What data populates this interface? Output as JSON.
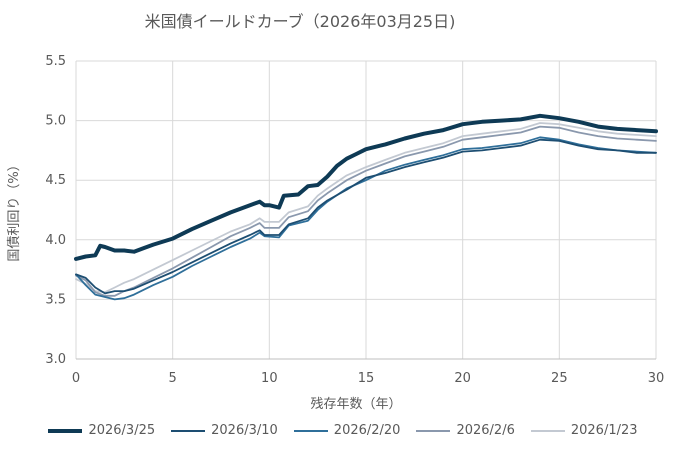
{
  "chart_data": {
    "type": "line",
    "title": "米国債イールドカーブ（2026年03月25日)",
    "xlabel": "残存年数（年）",
    "ylabel": "国債利回り（%）",
    "xlim": [
      0,
      30
    ],
    "ylim": [
      3.0,
      5.5
    ],
    "xticks": [
      0,
      5,
      10,
      15,
      20,
      25,
      30
    ],
    "yticks": [
      "3.0",
      "3.5",
      "4.0",
      "4.5",
      "5.0",
      "5.5"
    ],
    "grid": true,
    "legend_position": "bottom",
    "series": [
      {
        "name": "2026/3/25",
        "color": "#0e3a55",
        "width": 4,
        "points": [
          [
            0,
            3.84
          ],
          [
            0.5,
            3.86
          ],
          [
            1,
            3.87
          ],
          [
            1.25,
            3.95
          ],
          [
            1.5,
            3.94
          ],
          [
            2,
            3.91
          ],
          [
            2.5,
            3.91
          ],
          [
            3,
            3.9
          ],
          [
            3.5,
            3.93
          ],
          [
            4,
            3.96
          ],
          [
            5,
            4.01
          ],
          [
            6,
            4.09
          ],
          [
            7,
            4.16
          ],
          [
            8,
            4.23
          ],
          [
            9,
            4.29
          ],
          [
            9.5,
            4.32
          ],
          [
            9.75,
            4.29
          ],
          [
            10,
            4.29
          ],
          [
            10.5,
            4.27
          ],
          [
            10.75,
            4.37
          ],
          [
            11.5,
            4.38
          ],
          [
            12,
            4.45
          ],
          [
            12.5,
            4.46
          ],
          [
            13,
            4.53
          ],
          [
            13.5,
            4.62
          ],
          [
            14,
            4.68
          ],
          [
            14.5,
            4.72
          ],
          [
            15,
            4.76
          ],
          [
            16,
            4.8
          ],
          [
            17,
            4.85
          ],
          [
            18,
            4.89
          ],
          [
            19,
            4.92
          ],
          [
            20,
            4.97
          ],
          [
            21,
            4.99
          ],
          [
            22,
            5.0
          ],
          [
            23,
            5.01
          ],
          [
            24,
            5.04
          ],
          [
            25,
            5.02
          ],
          [
            26,
            4.99
          ],
          [
            27,
            4.95
          ],
          [
            28,
            4.93
          ],
          [
            29,
            4.92
          ],
          [
            30,
            4.91
          ]
        ]
      },
      {
        "name": "2026/3/10",
        "color": "#1d4e72",
        "width": 1.8,
        "points": [
          [
            0,
            3.71
          ],
          [
            0.5,
            3.68
          ],
          [
            1,
            3.6
          ],
          [
            1.5,
            3.55
          ],
          [
            2,
            3.57
          ],
          [
            2.5,
            3.57
          ],
          [
            3,
            3.59
          ],
          [
            4,
            3.66
          ],
          [
            5,
            3.73
          ],
          [
            6,
            3.81
          ],
          [
            7,
            3.89
          ],
          [
            8,
            3.97
          ],
          [
            9,
            4.04
          ],
          [
            9.5,
            4.08
          ],
          [
            9.75,
            4.04
          ],
          [
            10.5,
            4.04
          ],
          [
            11,
            4.13
          ],
          [
            12,
            4.18
          ],
          [
            12.5,
            4.27
          ],
          [
            13,
            4.33
          ],
          [
            14,
            4.42
          ],
          [
            15,
            4.52
          ],
          [
            16,
            4.56
          ],
          [
            17,
            4.61
          ],
          [
            18,
            4.65
          ],
          [
            19,
            4.69
          ],
          [
            20,
            4.74
          ],
          [
            21,
            4.75
          ],
          [
            22,
            4.77
          ],
          [
            23,
            4.79
          ],
          [
            24,
            4.84
          ],
          [
            25,
            4.83
          ],
          [
            26,
            4.79
          ],
          [
            27,
            4.76
          ],
          [
            28,
            4.75
          ],
          [
            29,
            4.73
          ],
          [
            30,
            4.73
          ]
        ]
      },
      {
        "name": "2026/2/20",
        "color": "#2f6f9a",
        "width": 1.8,
        "points": [
          [
            0,
            3.71
          ],
          [
            0.5,
            3.62
          ],
          [
            1,
            3.54
          ],
          [
            1.5,
            3.52
          ],
          [
            2,
            3.5
          ],
          [
            2.5,
            3.51
          ],
          [
            3,
            3.54
          ],
          [
            4,
            3.62
          ],
          [
            5,
            3.69
          ],
          [
            6,
            3.78
          ],
          [
            7,
            3.86
          ],
          [
            8,
            3.94
          ],
          [
            9,
            4.01
          ],
          [
            9.5,
            4.06
          ],
          [
            9.75,
            4.03
          ],
          [
            10.5,
            4.02
          ],
          [
            11,
            4.12
          ],
          [
            12,
            4.16
          ],
          [
            12.5,
            4.25
          ],
          [
            13,
            4.32
          ],
          [
            14,
            4.43
          ],
          [
            15,
            4.5
          ],
          [
            16,
            4.58
          ],
          [
            17,
            4.63
          ],
          [
            18,
            4.67
          ],
          [
            19,
            4.71
          ],
          [
            20,
            4.76
          ],
          [
            21,
            4.77
          ],
          [
            22,
            4.79
          ],
          [
            23,
            4.81
          ],
          [
            24,
            4.86
          ],
          [
            25,
            4.84
          ],
          [
            26,
            4.8
          ],
          [
            27,
            4.77
          ],
          [
            28,
            4.75
          ],
          [
            29,
            4.74
          ],
          [
            30,
            4.73
          ]
        ]
      },
      {
        "name": "2026/2/6",
        "color": "#8a98ad",
        "width": 1.8,
        "points": [
          [
            0,
            3.7
          ],
          [
            0.5,
            3.66
          ],
          [
            1,
            3.56
          ],
          [
            1.5,
            3.53
          ],
          [
            2,
            3.53
          ],
          [
            2.5,
            3.57
          ],
          [
            3,
            3.6
          ],
          [
            4,
            3.68
          ],
          [
            5,
            3.76
          ],
          [
            6,
            3.85
          ],
          [
            7,
            3.94
          ],
          [
            8,
            4.03
          ],
          [
            9,
            4.1
          ],
          [
            9.5,
            4.14
          ],
          [
            9.75,
            4.1
          ],
          [
            10.5,
            4.1
          ],
          [
            11,
            4.19
          ],
          [
            12,
            4.24
          ],
          [
            12.5,
            4.33
          ],
          [
            13,
            4.39
          ],
          [
            14,
            4.5
          ],
          [
            15,
            4.58
          ],
          [
            16,
            4.64
          ],
          [
            17,
            4.7
          ],
          [
            18,
            4.74
          ],
          [
            19,
            4.78
          ],
          [
            20,
            4.84
          ],
          [
            21,
            4.86
          ],
          [
            22,
            4.88
          ],
          [
            23,
            4.9
          ],
          [
            24,
            4.95
          ],
          [
            25,
            4.94
          ],
          [
            26,
            4.9
          ],
          [
            27,
            4.87
          ],
          [
            28,
            4.85
          ],
          [
            29,
            4.84
          ],
          [
            30,
            4.83
          ]
        ]
      },
      {
        "name": "2026/1/23",
        "color": "#c3c9d2",
        "width": 1.8,
        "points": [
          [
            0,
            3.67
          ],
          [
            0.5,
            3.63
          ],
          [
            1,
            3.57
          ],
          [
            1.5,
            3.56
          ],
          [
            2,
            3.6
          ],
          [
            2.5,
            3.64
          ],
          [
            3,
            3.67
          ],
          [
            4,
            3.75
          ],
          [
            5,
            3.83
          ],
          [
            6,
            3.91
          ],
          [
            7,
            3.99
          ],
          [
            8,
            4.07
          ],
          [
            9,
            4.13
          ],
          [
            9.5,
            4.18
          ],
          [
            9.75,
            4.15
          ],
          [
            10.5,
            4.15
          ],
          [
            11,
            4.23
          ],
          [
            12,
            4.28
          ],
          [
            12.5,
            4.37
          ],
          [
            13,
            4.43
          ],
          [
            14,
            4.54
          ],
          [
            15,
            4.61
          ],
          [
            16,
            4.67
          ],
          [
            17,
            4.73
          ],
          [
            18,
            4.77
          ],
          [
            19,
            4.81
          ],
          [
            20,
            4.87
          ],
          [
            21,
            4.89
          ],
          [
            22,
            4.91
          ],
          [
            23,
            4.93
          ],
          [
            24,
            4.98
          ],
          [
            25,
            4.97
          ],
          [
            26,
            4.94
          ],
          [
            27,
            4.91
          ],
          [
            28,
            4.89
          ],
          [
            29,
            4.88
          ],
          [
            30,
            4.87
          ]
        ]
      }
    ]
  }
}
